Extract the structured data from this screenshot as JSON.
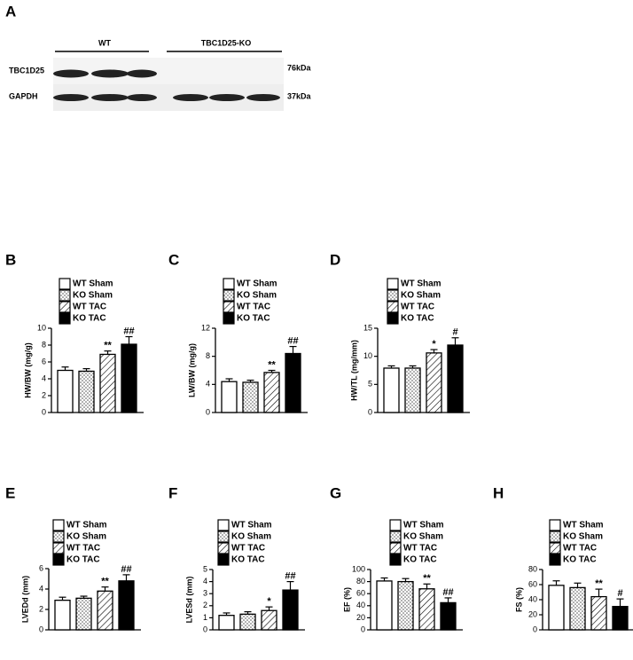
{
  "blot": {
    "panel": "A",
    "groups": [
      "WT",
      "TBC1D25-KO"
    ],
    "rows": [
      {
        "label": "TBC1D25",
        "size": "76kDa"
      },
      {
        "label": "GAPDH",
        "size": "37kDa"
      }
    ]
  },
  "chart_data": [
    {
      "type": "bar",
      "panel": "B",
      "ylabel": "HW/BW (mg/g)",
      "categories": [
        "WT Sham",
        "KO Sham",
        "WT TAC",
        "KO TAC"
      ],
      "patterns": [
        "white",
        "dots",
        "hatch",
        "black"
      ],
      "values": [
        5.0,
        4.9,
        6.9,
        8.1
      ],
      "errors": [
        0.4,
        0.3,
        0.4,
        0.9
      ],
      "annotations": [
        null,
        null,
        "**",
        "##"
      ],
      "ylim": [
        0,
        10
      ],
      "yticks": [
        0,
        2,
        4,
        6,
        8,
        10
      ]
    },
    {
      "type": "bar",
      "panel": "C",
      "ylabel": "LW/BW (mg/g)",
      "categories": [
        "WT Sham",
        "KO Sham",
        "WT TAC",
        "KO TAC"
      ],
      "patterns": [
        "white",
        "dots",
        "hatch",
        "black"
      ],
      "values": [
        4.4,
        4.3,
        5.7,
        8.4
      ],
      "errors": [
        0.4,
        0.3,
        0.3,
        1.0
      ],
      "annotations": [
        null,
        null,
        "**",
        "##"
      ],
      "ylim": [
        0,
        12
      ],
      "yticks": [
        0,
        4,
        8,
        12
      ]
    },
    {
      "type": "bar",
      "panel": "D",
      "ylabel": "HW/TL (mg/mm)",
      "categories": [
        "WT Sham",
        "KO Sham",
        "WT TAC",
        "KO TAC"
      ],
      "patterns": [
        "white",
        "dots",
        "hatch",
        "black"
      ],
      "values": [
        7.9,
        7.9,
        10.6,
        12.0
      ],
      "errors": [
        0.4,
        0.4,
        0.6,
        1.3
      ],
      "annotations": [
        null,
        null,
        "*",
        "#"
      ],
      "ylim": [
        0,
        15
      ],
      "yticks": [
        0,
        5,
        10,
        15
      ]
    },
    {
      "type": "bar",
      "panel": "E",
      "ylabel": "LVEDd (mm)",
      "categories": [
        "WT Sham",
        "KO Sham",
        "WT TAC",
        "KO TAC"
      ],
      "patterns": [
        "white",
        "dots",
        "hatch",
        "black"
      ],
      "values": [
        2.9,
        3.1,
        3.8,
        4.8
      ],
      "errors": [
        0.3,
        0.2,
        0.4,
        0.6
      ],
      "annotations": [
        null,
        null,
        "**",
        "##"
      ],
      "ylim": [
        0,
        6
      ],
      "yticks": [
        0,
        2,
        4,
        6
      ]
    },
    {
      "type": "bar",
      "panel": "F",
      "ylabel": "LVESd (mm)",
      "categories": [
        "WT Sham",
        "KO Sham",
        "WT TAC",
        "KO TAC"
      ],
      "patterns": [
        "white",
        "dots",
        "hatch",
        "black"
      ],
      "values": [
        1.2,
        1.3,
        1.6,
        3.3
      ],
      "errors": [
        0.2,
        0.2,
        0.3,
        0.7
      ],
      "annotations": [
        null,
        null,
        "*",
        "##"
      ],
      "ylim": [
        0,
        5
      ],
      "yticks": [
        0,
        1,
        2,
        3,
        4,
        5
      ]
    },
    {
      "type": "bar",
      "panel": "G",
      "ylabel": "EF (%)",
      "categories": [
        "WT Sham",
        "KO Sham",
        "WT TAC",
        "KO TAC"
      ],
      "patterns": [
        "white",
        "dots",
        "hatch",
        "black"
      ],
      "values": [
        81,
        80,
        68,
        45
      ],
      "errors": [
        5,
        5,
        8,
        8
      ],
      "annotations": [
        null,
        null,
        "**",
        "##"
      ],
      "ylim": [
        0,
        100
      ],
      "yticks": [
        0,
        20,
        40,
        60,
        80,
        100
      ]
    },
    {
      "type": "bar",
      "panel": "H",
      "ylabel": "FS (%)",
      "categories": [
        "WT Sham",
        "KO Sham",
        "WT TAC",
        "KO TAC"
      ],
      "patterns": [
        "white",
        "dots",
        "hatch",
        "black"
      ],
      "values": [
        59,
        56,
        44,
        31
      ],
      "errors": [
        6,
        6,
        10,
        10
      ],
      "annotations": [
        null,
        null,
        "**",
        "#"
      ],
      "ylim": [
        0,
        80
      ],
      "yticks": [
        0,
        20,
        40,
        60,
        80
      ]
    }
  ]
}
